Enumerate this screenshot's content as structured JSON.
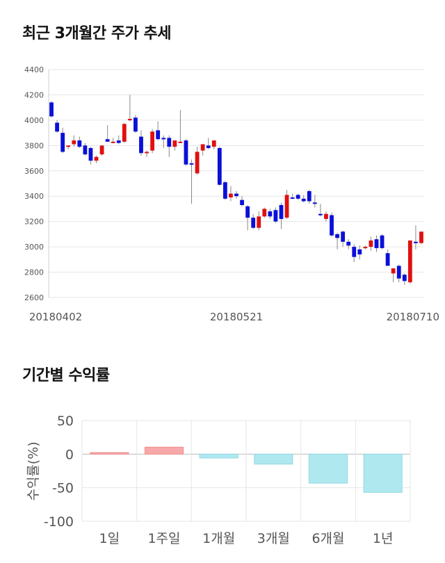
{
  "section1": {
    "title": "최근 3개월간 주가 추세"
  },
  "section2": {
    "title": "기간별 수익률"
  },
  "chart_data": [
    {
      "type": "candlestick",
      "title": "최근 3개월간 주가 추세",
      "ylim": [
        2600,
        4400
      ],
      "yticks": [
        "4400",
        "4200",
        "4000",
        "3800",
        "3600",
        "3400",
        "3200",
        "3000",
        "2800",
        "2600"
      ],
      "ytick_values": [
        4400,
        4200,
        4000,
        3800,
        3600,
        3400,
        3200,
        3000,
        2800,
        2600
      ],
      "xtick_labels": [
        {
          "label": "20180402",
          "index": 0
        },
        {
          "label": "20180521",
          "index": 33
        },
        {
          "label": "20180710",
          "index": 67
        }
      ],
      "grid": true,
      "candles": [
        [
          4140,
          4150,
          4020,
          4030
        ],
        [
          3980,
          4000,
          3900,
          3910
        ],
        [
          3900,
          3940,
          3740,
          3750
        ],
        [
          3790,
          3800,
          3770,
          3800
        ],
        [
          3810,
          3880,
          3790,
          3840
        ],
        [
          3840,
          3870,
          3780,
          3790
        ],
        [
          3800,
          3820,
          3720,
          3730
        ],
        [
          3780,
          3790,
          3650,
          3680
        ],
        [
          3680,
          3720,
          3660,
          3710
        ],
        [
          3730,
          3800,
          3720,
          3800
        ],
        [
          3850,
          3960,
          3830,
          3830
        ],
        [
          3830,
          3860,
          3820,
          3830
        ],
        [
          3840,
          3880,
          3810,
          3820
        ],
        [
          3830,
          3980,
          3820,
          3970
        ],
        [
          4000,
          4200,
          3990,
          4010
        ],
        [
          4020,
          4040,
          3900,
          3910
        ],
        [
          3870,
          3920,
          3720,
          3740
        ],
        [
          3740,
          3760,
          3710,
          3750
        ],
        [
          3760,
          3930,
          3740,
          3910
        ],
        [
          3920,
          3990,
          3840,
          3850
        ],
        [
          3860,
          3880,
          3780,
          3850
        ],
        [
          3860,
          3880,
          3710,
          3790
        ],
        [
          3790,
          3840,
          3760,
          3840
        ],
        [
          3830,
          4080,
          3820,
          3830
        ],
        [
          3840,
          3850,
          3640,
          3650
        ],
        [
          3660,
          3690,
          3340,
          3650
        ],
        [
          3580,
          3790,
          3570,
          3750
        ],
        [
          3760,
          3810,
          3720,
          3810
        ],
        [
          3800,
          3860,
          3770,
          3780
        ],
        [
          3790,
          3840,
          3770,
          3840
        ],
        [
          3780,
          3790,
          3480,
          3490
        ],
        [
          3510,
          3520,
          3370,
          3380
        ],
        [
          3390,
          3480,
          3360,
          3420
        ],
        [
          3420,
          3440,
          3380,
          3400
        ],
        [
          3370,
          3400,
          3320,
          3330
        ],
        [
          3320,
          3330,
          3130,
          3230
        ],
        [
          3230,
          3260,
          3140,
          3150
        ],
        [
          3150,
          3280,
          3130,
          3240
        ],
        [
          3240,
          3310,
          3230,
          3300
        ],
        [
          3280,
          3300,
          3220,
          3240
        ],
        [
          3290,
          3310,
          3190,
          3200
        ],
        [
          3330,
          3350,
          3140,
          3220
        ],
        [
          3230,
          3450,
          3220,
          3410
        ],
        [
          3390,
          3420,
          3380,
          3380
        ],
        [
          3410,
          3420,
          3370,
          3380
        ],
        [
          3380,
          3410,
          3350,
          3360
        ],
        [
          3440,
          3450,
          3340,
          3360
        ],
        [
          3350,
          3410,
          3310,
          3340
        ],
        [
          3260,
          3340,
          3240,
          3250
        ],
        [
          3220,
          3280,
          3200,
          3260
        ],
        [
          3250,
          3270,
          3080,
          3090
        ],
        [
          3100,
          3110,
          2980,
          3070
        ],
        [
          3120,
          3130,
          3000,
          3040
        ],
        [
          3040,
          3060,
          2980,
          3010
        ],
        [
          3000,
          3020,
          2880,
          2920
        ],
        [
          2980,
          3010,
          2900,
          2940
        ],
        [
          2990,
          3010,
          2980,
          3000
        ],
        [
          3000,
          3080,
          2970,
          3050
        ],
        [
          3060,
          3090,
          2960,
          2990
        ],
        [
          3090,
          3100,
          2980,
          2990
        ],
        [
          2950,
          2980,
          2850,
          2850
        ],
        [
          2790,
          2830,
          2720,
          2830
        ],
        [
          2850,
          2860,
          2720,
          2750
        ],
        [
          2780,
          2790,
          2700,
          2730
        ],
        [
          2720,
          3050,
          2710,
          3050
        ],
        [
          3040,
          3170,
          2980,
          3030
        ],
        [
          3030,
          3120,
          3020,
          3120
        ]
      ]
    },
    {
      "type": "bar",
      "title": "기간별 수익률",
      "ylabel": "수익률(%)",
      "ylim": [
        -100,
        50
      ],
      "yticks": [
        "50",
        "0",
        "-50",
        "-100"
      ],
      "ytick_values": [
        50,
        0,
        -50,
        -100
      ],
      "categories": [
        "1일",
        "1주일",
        "1개월",
        "3개월",
        "6개월",
        "1년"
      ],
      "values": [
        2.3,
        10.4,
        -5.8,
        -14.9,
        -43.2,
        -56.9
      ],
      "colors": {
        "positive": "#f8a8a8",
        "positive_stroke": "#f08c8c",
        "negative": "#b0e8f0",
        "negative_stroke": "#90d8e4"
      }
    }
  ],
  "colors": {
    "up": "#e01010",
    "down": "#0a10d8",
    "wick": "#888888",
    "grid": "#e6e6e6",
    "axis": "#999999"
  }
}
